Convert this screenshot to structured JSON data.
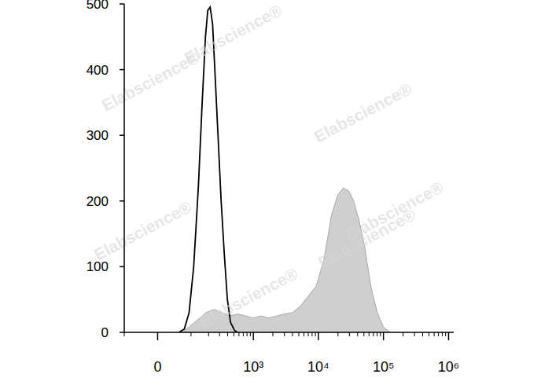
{
  "chart_data": {
    "type": "line",
    "log": "x",
    "xlim": [
      -100,
      1200000
    ],
    "xticks": [
      0,
      {
        "value": 1000,
        "label": "10³"
      },
      {
        "value": 10000,
        "label": "10⁴"
      },
      {
        "value": 100000,
        "label": "10⁵"
      },
      {
        "value": 1000000,
        "label": "10⁶"
      }
    ],
    "ylim": [
      0,
      500
    ],
    "yticks": [
      0,
      100,
      200,
      300,
      400,
      500
    ],
    "annotations": [
      "Elabscience®"
    ],
    "series": [
      {
        "type": "area",
        "color": "#cfcfcf",
        "x": [
          69,
          98,
          135,
          182,
          245,
          326,
          433,
          572,
          757,
          999,
          1319,
          1740,
          2298,
          3032,
          4000,
          5280,
          6970,
          9200,
          12150,
          16000,
          20000,
          24300,
          29500,
          34800,
          42300,
          51400,
          64100,
          80100,
          100000,
          128200
        ],
        "values": [
          0,
          10,
          20,
          30,
          35,
          30,
          25,
          28,
          25,
          22,
          25,
          22,
          25,
          28,
          30,
          40,
          55,
          70,
          110,
          180,
          210,
          220,
          215,
          200,
          170,
          130,
          70,
          30,
          8,
          0
        ]
      },
      {
        "type": "line",
        "color": "#000000",
        "x": [
          56,
          74,
          92,
          112,
          135,
          157,
          178,
          194,
          212,
          232,
          252,
          283,
          317,
          355,
          397,
          445,
          512,
          572
        ],
        "values": [
          0,
          5,
          30,
          100,
          220,
          350,
          450,
          490,
          495,
          470,
          400,
          300,
          200,
          120,
          50,
          15,
          3,
          0
        ]
      }
    ]
  }
}
